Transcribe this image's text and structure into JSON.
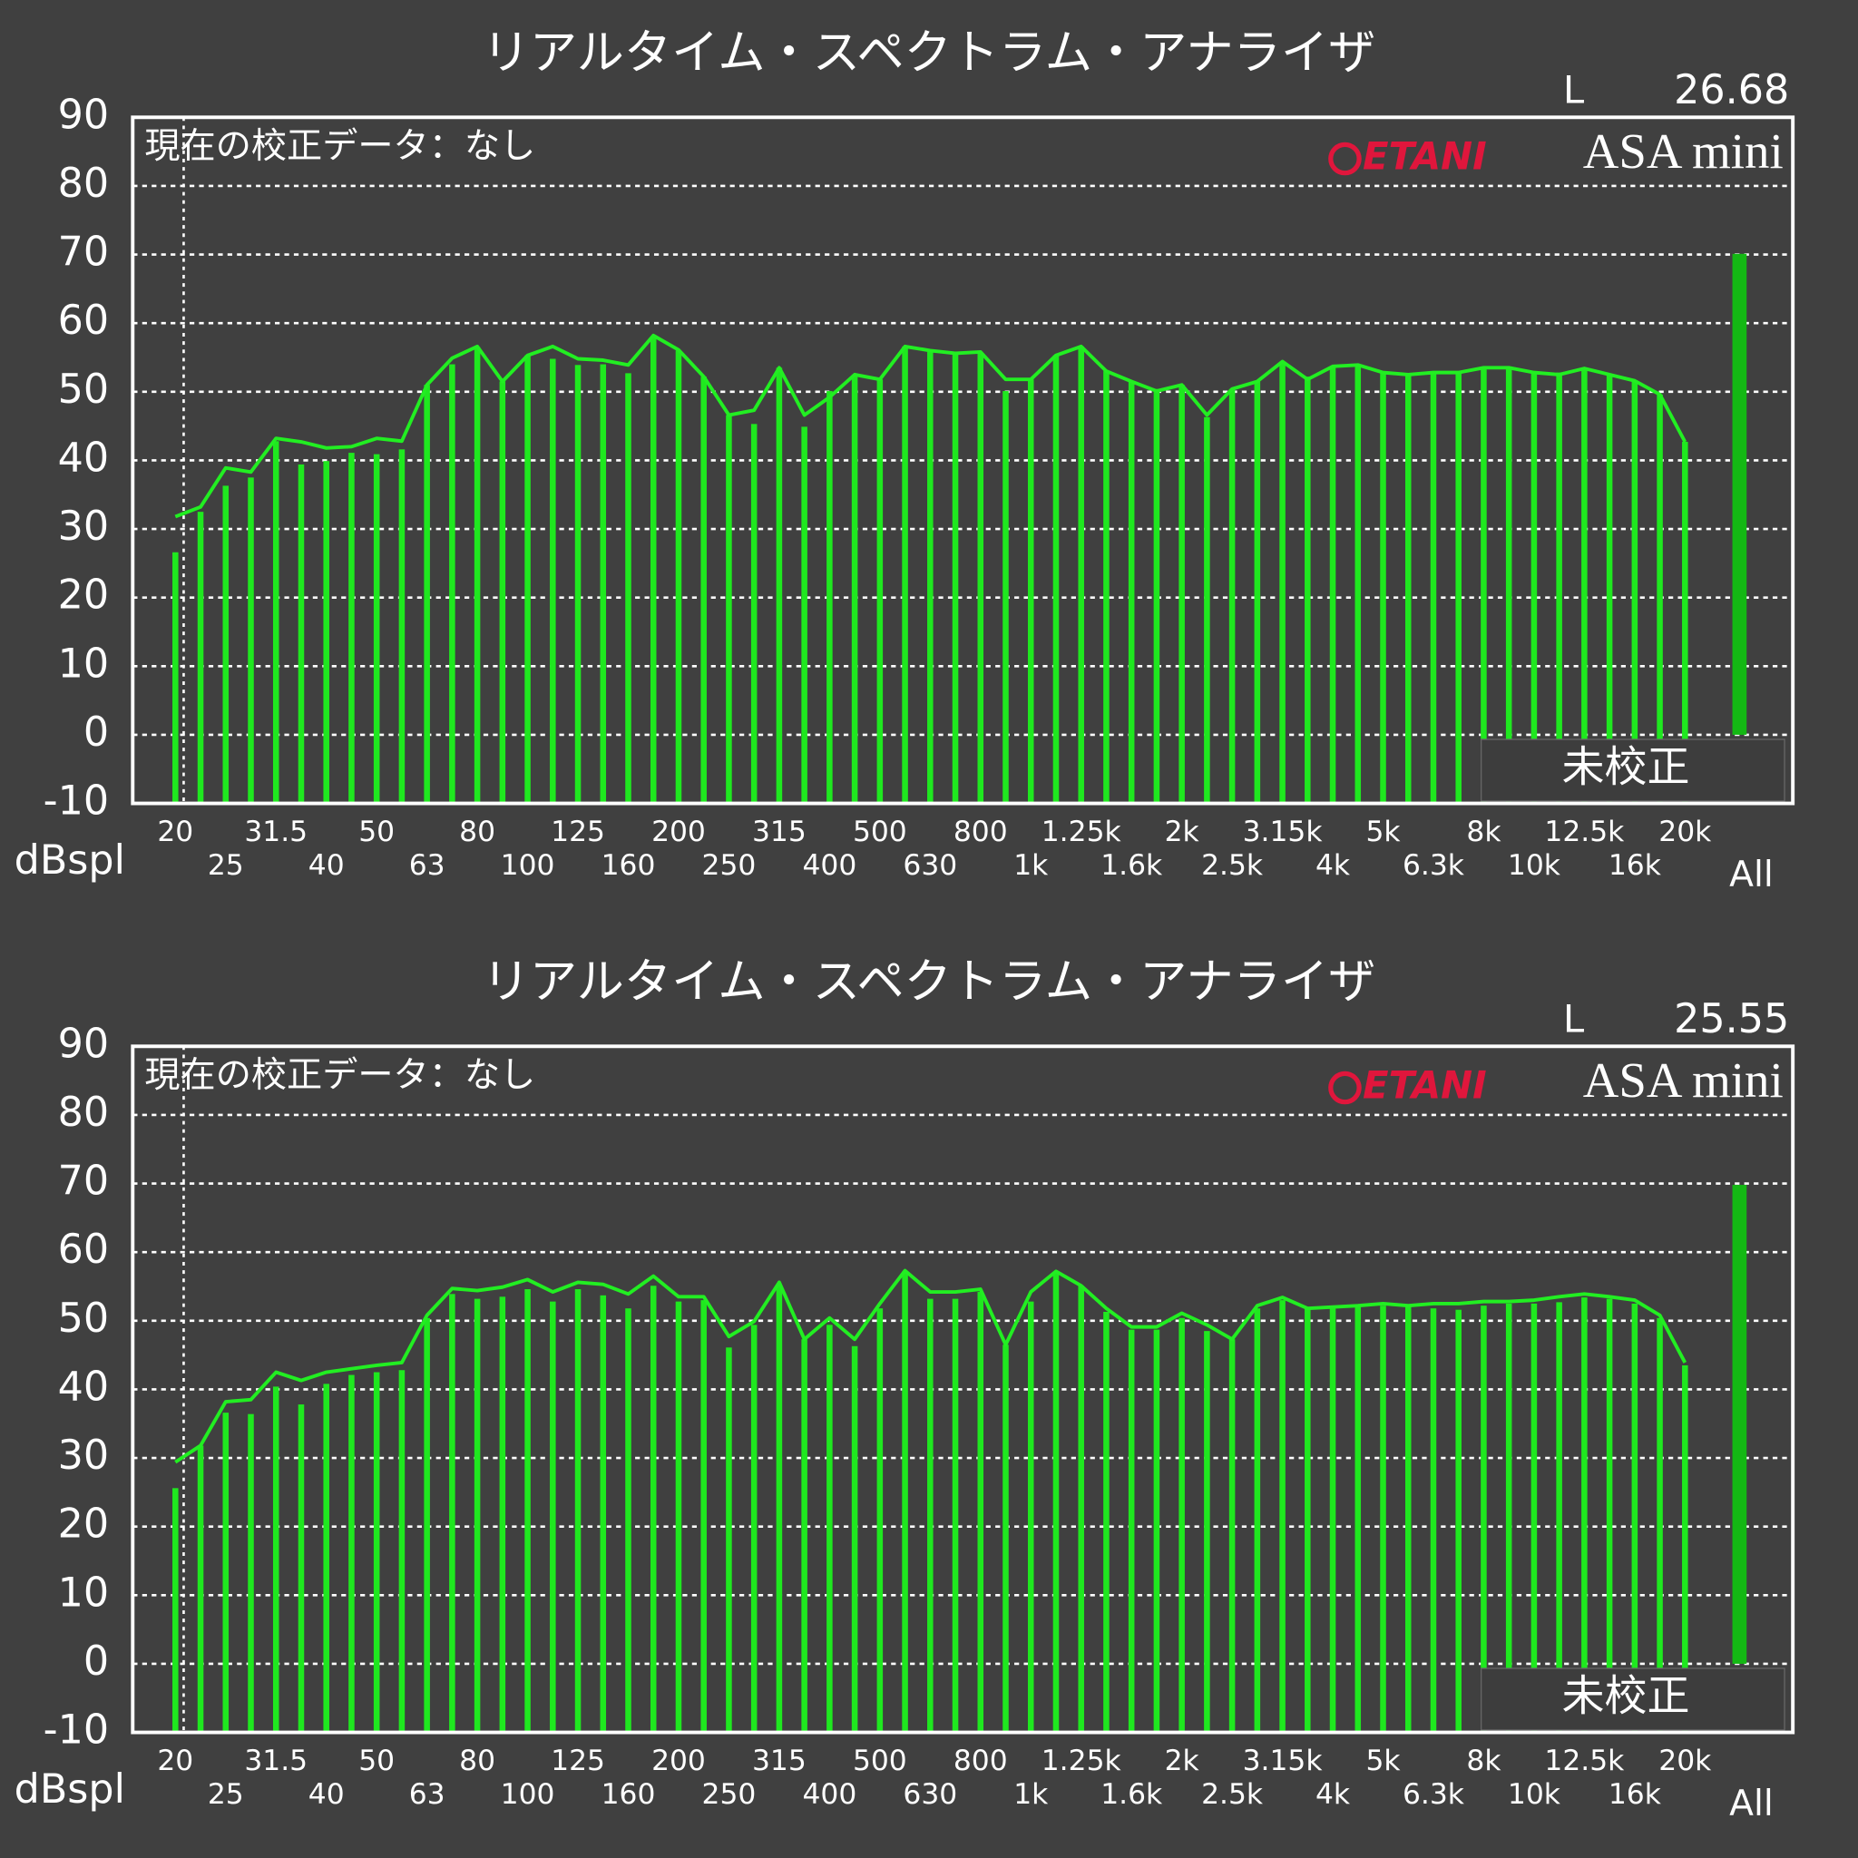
{
  "chart_data": [
    {
      "type": "bar",
      "title": "リアルタイム・スペクトラム・アナライザ",
      "channel": "L",
      "level": 26.68,
      "note": "現在の校正データ：なし",
      "brand": "ETANI",
      "product": "ASA mini",
      "status": "未校正",
      "ylabel": "dBspl",
      "categories": [
        "20",
        null,
        "25",
        null,
        "31.5",
        null,
        "40",
        null,
        "50",
        null,
        "63",
        null,
        "80",
        null,
        "100",
        null,
        "125",
        null,
        "160",
        null,
        "200",
        null,
        "250",
        null,
        "315",
        null,
        "400",
        null,
        "500",
        null,
        "630",
        null,
        "800",
        null,
        "1k",
        null,
        "1.25k",
        null,
        "1.6k",
        null,
        "2k",
        null,
        "2.5k",
        null,
        "3.15k",
        null,
        "4k",
        null,
        "5k",
        null,
        "6.3k",
        null,
        "8k",
        null,
        "10k",
        null,
        "12.5k",
        null,
        "16k",
        null,
        "20k"
      ],
      "series": [
        {
          "style": "bar",
          "color": "#1fe81f",
          "values": [
            26.6,
            32.5,
            36.3,
            37.5,
            42.8,
            39.4,
            39.9,
            41.1,
            40.9,
            41.6,
            51,
            54,
            56.5,
            51.5,
            55.3,
            54.8,
            53.9,
            54,
            52.7,
            57.9,
            56,
            52.2,
            46.6,
            45.3,
            53.5,
            44.9,
            50.1,
            52.5,
            51.8,
            56.6,
            55.8,
            55.6,
            55.6,
            50.1,
            51.8,
            55.3,
            56.6,
            53,
            51.5,
            50.4,
            51,
            46.3,
            50.4,
            51.5,
            54.4,
            52.2,
            53.7,
            53.7,
            52.8,
            52.5,
            52.8,
            52.8,
            53.5,
            53.5,
            52.8,
            52.8,
            53.4,
            52.5,
            51.6,
            49.6,
            42.7
          ]
        },
        {
          "style": "line",
          "color": "#22ee22",
          "values": [
            31.8,
            33.2,
            38.9,
            38.3,
            43.2,
            42.7,
            41.8,
            42,
            43.2,
            42.8,
            51,
            54.9,
            56.6,
            51.5,
            55.3,
            56.6,
            54.8,
            54.6,
            53.9,
            58.2,
            56.1,
            52.2,
            46.6,
            47.3,
            53.5,
            46.6,
            49.2,
            52.5,
            51.8,
            56.6,
            56,
            55.6,
            55.8,
            51.8,
            51.8,
            55.3,
            56.6,
            53,
            51.5,
            50.1,
            51,
            46.6,
            50.4,
            51.5,
            54.4,
            51.8,
            53.7,
            53.9,
            52.8,
            52.5,
            52.8,
            52.8,
            53.5,
            53.5,
            52.8,
            52.5,
            53.4,
            52.5,
            51.6,
            49.6,
            42.7
          ]
        }
      ],
      "total_label": "All",
      "total_value": 70.1,
      "total_color": "#14b814",
      "ylim": [
        -10,
        90
      ],
      "yticks": [
        -10,
        0,
        10,
        20,
        30,
        40,
        50,
        60,
        70,
        80,
        90
      ],
      "grid": true
    },
    {
      "type": "bar",
      "title": "リアルタイム・スペクトラム・アナライザ",
      "channel": "L",
      "level": 25.55,
      "note": "現在の校正データ：なし",
      "brand": "ETANI",
      "product": "ASA mini",
      "status": "未校正",
      "ylabel": "dBspl",
      "categories": [
        "20",
        null,
        "25",
        null,
        "31.5",
        null,
        "40",
        null,
        "50",
        null,
        "63",
        null,
        "80",
        null,
        "100",
        null,
        "125",
        null,
        "160",
        null,
        "200",
        null,
        "250",
        null,
        "315",
        null,
        "400",
        null,
        "500",
        null,
        "630",
        null,
        "800",
        null,
        "1k",
        null,
        "1.25k",
        null,
        "1.6k",
        null,
        "2k",
        null,
        "2.5k",
        null,
        "3.15k",
        null,
        "4k",
        null,
        "5k",
        null,
        "6.3k",
        null,
        "8k",
        null,
        "10k",
        null,
        "12.5k",
        null,
        "16k",
        null,
        "20k"
      ],
      "series": [
        {
          "style": "bar",
          "color": "#1fe81f",
          "values": [
            25.6,
            31.8,
            36.6,
            36.4,
            40.4,
            37.8,
            40.8,
            42.1,
            42.5,
            42.8,
            50.4,
            53.9,
            53.2,
            53.5,
            54.6,
            52.8,
            54.6,
            53.7,
            51.8,
            55.1,
            52.8,
            53,
            46.1,
            49.4,
            55.1,
            47.3,
            49.4,
            46.3,
            51.8,
            57.2,
            53.2,
            53.2,
            54.2,
            46.5,
            52.8,
            57.2,
            55.1,
            51.3,
            48.7,
            48.7,
            50.4,
            48.5,
            47.3,
            51.8,
            53,
            51.8,
            51.8,
            52,
            52.2,
            52.2,
            51.8,
            51.6,
            52.2,
            52.5,
            52.5,
            52.7,
            53.4,
            53.2,
            52.5,
            50.4,
            43.5
          ]
        },
        {
          "style": "line",
          "color": "#22ee22",
          "values": [
            29.4,
            31.8,
            38.2,
            38.5,
            42.5,
            41.3,
            42.5,
            43,
            43.5,
            43.9,
            50.8,
            54.7,
            54.4,
            54.9,
            56,
            54.2,
            55.6,
            55.3,
            53.9,
            56.5,
            53.5,
            53.5,
            47.7,
            49.9,
            55.6,
            47.3,
            50.4,
            47.3,
            52.5,
            57.3,
            54.2,
            54.2,
            54.6,
            46.5,
            54.2,
            57.2,
            55.1,
            51.8,
            49.1,
            49.1,
            51.1,
            49.4,
            47.3,
            52.2,
            53.4,
            51.8,
            52,
            52.2,
            52.5,
            52.2,
            52.5,
            52.5,
            52.8,
            52.8,
            53,
            53.5,
            53.9,
            53.5,
            53,
            50.8,
            43.9
          ]
        }
      ],
      "total_label": "All",
      "total_value": 69.8,
      "total_color": "#14b814",
      "ylim": [
        -10,
        90
      ],
      "yticks": [
        -10,
        0,
        10,
        20,
        30,
        40,
        50,
        60,
        70,
        80,
        90
      ],
      "grid": true
    }
  ]
}
